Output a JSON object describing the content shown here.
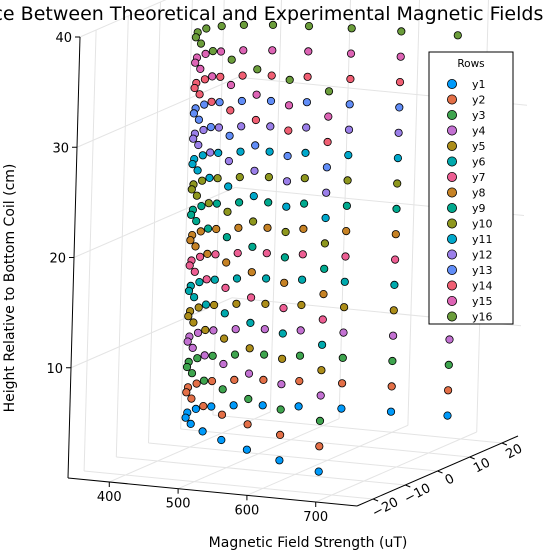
{
  "chart_data": {
    "type": "scatter",
    "subtype": "3d-scatter",
    "title": "Difference Between Theoretical and Experimental Magnetic Fields",
    "xlabel": "Magnetic Field Strength (uT)",
    "ylabel": "",
    "zlabel": "Height Relative to Bottom Coil (cm)",
    "x_ticks": [
      "400",
      "500",
      "600",
      "700"
    ],
    "y_ticks": [
      "−20",
      "−10",
      "0",
      "10",
      "20"
    ],
    "z_ticks": [
      "10",
      "20",
      "30",
      "40"
    ],
    "xlim": [
      340,
      760
    ],
    "ylim": [
      -25,
      25
    ],
    "zlim": [
      0,
      40
    ],
    "grid": true,
    "legend": {
      "title": "Rows",
      "position": "top-right",
      "entries": [
        "y1",
        "y2",
        "y3",
        "y4",
        "y5",
        "y6",
        "y7",
        "y8",
        "y9",
        "y10",
        "y11",
        "y12",
        "y13",
        "y14",
        "y15",
        "y16"
      ]
    },
    "series": [
      {
        "name": "y1",
        "color": "#009AFA",
        "z": 2.0
      },
      {
        "name": "y2",
        "color": "#E36F47",
        "z": 4.3
      },
      {
        "name": "y3",
        "color": "#3EA44E",
        "z": 6.6
      },
      {
        "name": "y4",
        "color": "#C371D2",
        "z": 8.9
      },
      {
        "name": "y5",
        "color": "#AC8D19",
        "z": 11.2
      },
      {
        "name": "y6",
        "color": "#00A9AD",
        "z": 13.5
      },
      {
        "name": "y7",
        "color": "#ED5E93",
        "z": 15.8
      },
      {
        "name": "y8",
        "color": "#C68225",
        "z": 18.1
      },
      {
        "name": "y9",
        "color": "#00A98E",
        "z": 20.4
      },
      {
        "name": "y10",
        "color": "#8E971E",
        "z": 22.7
      },
      {
        "name": "y11",
        "color": "#00A8CB",
        "z": 25.0
      },
      {
        "name": "y12",
        "color": "#9B7FE9",
        "z": 27.3
      },
      {
        "name": "y13",
        "color": "#618DF7",
        "z": 29.6
      },
      {
        "name": "y14",
        "color": "#F05F73",
        "z": 31.9
      },
      {
        "name": "y15",
        "color": "#DD64B5",
        "z": 34.2
      },
      {
        "name": "y16",
        "color": "#6B9D3B",
        "z": 36.5
      }
    ],
    "points_per_series": 16,
    "y_range_per_series": [
      -20,
      20
    ],
    "x_profile_uT": {
      "edge_extra": 280,
      "min": 400
    }
  }
}
